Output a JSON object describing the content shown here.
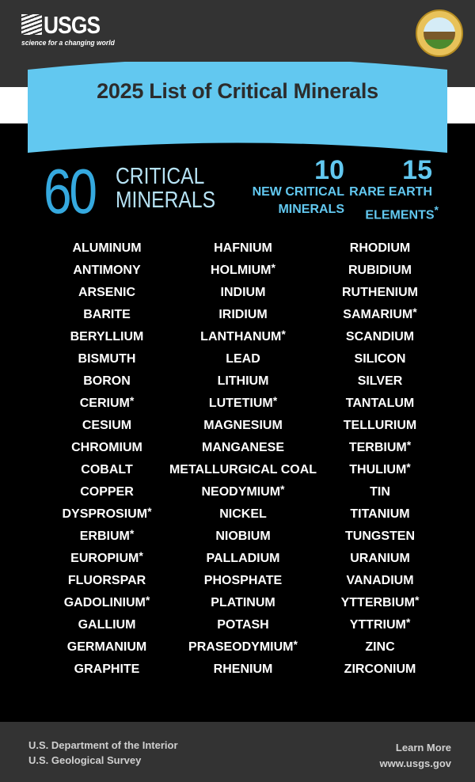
{
  "header": {
    "logo_text": "USGS",
    "tagline": "science for a changing world",
    "seal_text": "U.S. Department of the Interior, March 3, 1849"
  },
  "title": "2025 List of Critical Minerals",
  "summary": {
    "total": "60",
    "total_label_1": "CRITICAL",
    "total_label_2": "MINERALS",
    "new_count": "10",
    "new_label_1": "NEW CRITICAL",
    "new_label_2": "MINERALS",
    "ree_count": "15",
    "ree_label_1": "RARE EARTH",
    "ree_label_2": "ELEMENTS",
    "ree_mark": "*"
  },
  "columns": [
    [
      {
        "name": "ALUMINUM"
      },
      {
        "name": "ANTIMONY"
      },
      {
        "name": "ARSENIC"
      },
      {
        "name": "BARITE"
      },
      {
        "name": "BERYLLIUM"
      },
      {
        "name": "BISMUTH"
      },
      {
        "name": "BORON"
      },
      {
        "name": "CERIUM",
        "ree": true
      },
      {
        "name": "CESIUM"
      },
      {
        "name": "CHROMIUM"
      },
      {
        "name": "COBALT"
      },
      {
        "name": "COPPER"
      },
      {
        "name": "DYSPROSIUM",
        "ree": true
      },
      {
        "name": "ERBIUM",
        "ree": true
      },
      {
        "name": "EUROPIUM",
        "ree": true
      },
      {
        "name": "FLUORSPAR"
      },
      {
        "name": "GADOLINIUM",
        "ree": true
      },
      {
        "name": "GALLIUM"
      },
      {
        "name": "GERMANIUM"
      },
      {
        "name": "GRAPHITE"
      }
    ],
    [
      {
        "name": "HAFNIUM"
      },
      {
        "name": "HOLMIUM",
        "ree": true
      },
      {
        "name": "INDIUM"
      },
      {
        "name": "IRIDIUM"
      },
      {
        "name": "LANTHANUM",
        "ree": true
      },
      {
        "name": "LEAD"
      },
      {
        "name": "LITHIUM"
      },
      {
        "name": "LUTETIUM",
        "ree": true
      },
      {
        "name": "MAGNESIUM"
      },
      {
        "name": "MANGANESE"
      },
      {
        "name": "METALLURGICAL COAL"
      },
      {
        "name": "NEODYMIUM",
        "ree": true
      },
      {
        "name": "NICKEL"
      },
      {
        "name": "NIOBIUM"
      },
      {
        "name": "PALLADIUM"
      },
      {
        "name": "PHOSPHATE"
      },
      {
        "name": "PLATINUM"
      },
      {
        "name": "POTASH"
      },
      {
        "name": "PRASEODYMIUM",
        "ree": true
      },
      {
        "name": "RHENIUM"
      }
    ],
    [
      {
        "name": "RHODIUM"
      },
      {
        "name": "RUBIDIUM"
      },
      {
        "name": "RUTHENIUM"
      },
      {
        "name": "SAMARIUM",
        "ree": true
      },
      {
        "name": "SCANDIUM"
      },
      {
        "name": "SILICON"
      },
      {
        "name": "SILVER"
      },
      {
        "name": "TANTALUM"
      },
      {
        "name": "TELLURIUM"
      },
      {
        "name": "TERBIUM",
        "ree": true
      },
      {
        "name": "THULIUM",
        "ree": true
      },
      {
        "name": "TIN"
      },
      {
        "name": "TITANIUM"
      },
      {
        "name": "TUNGSTEN"
      },
      {
        "name": "URANIUM"
      },
      {
        "name": "VANADIUM"
      },
      {
        "name": "YTTERBIUM",
        "ree": true
      },
      {
        "name": "YTTRIUM",
        "ree": true
      },
      {
        "name": "ZINC"
      },
      {
        "name": "ZIRCONIUM"
      }
    ]
  ],
  "footer": {
    "dept": "U.S. Department of the Interior",
    "survey": "U.S. Geological Survey",
    "learn_more": "Learn More",
    "url": "www.usgs.gov"
  },
  "colors": {
    "banner": "#62c8f0",
    "accent": "#35a9df",
    "background": "#000000",
    "bars": "#333333"
  }
}
